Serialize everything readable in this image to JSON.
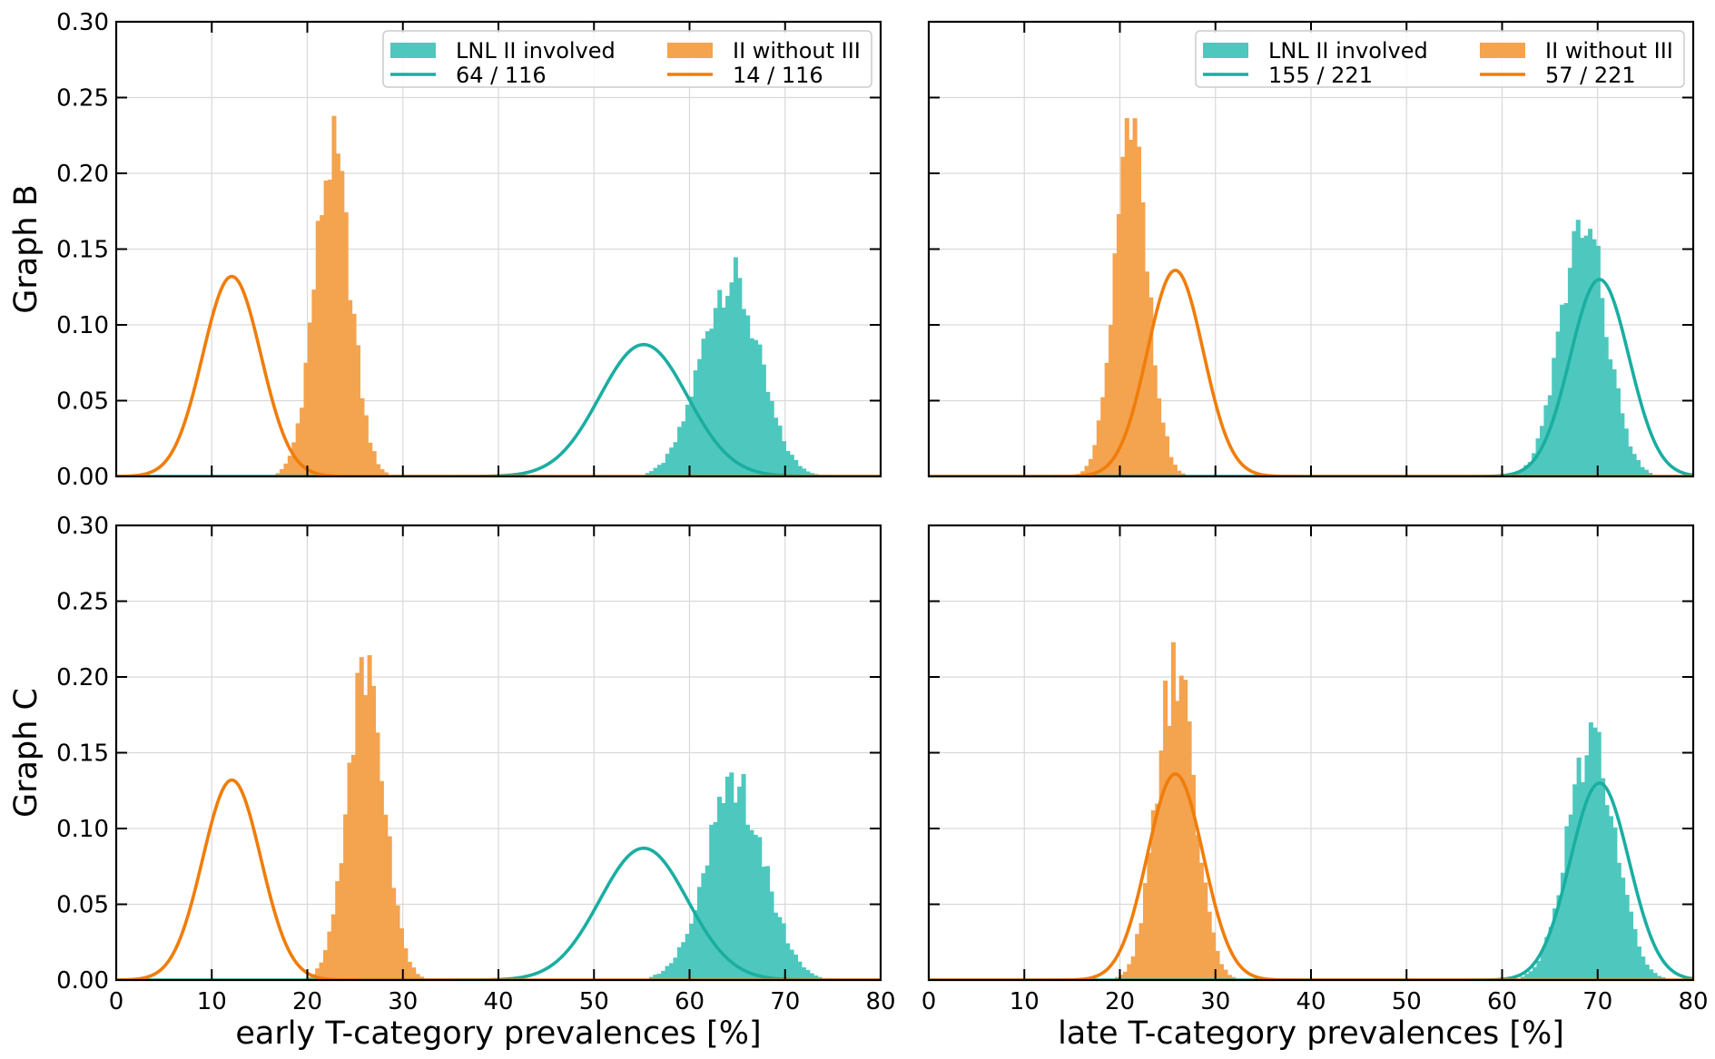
{
  "colors": {
    "teal": "#1aaea1",
    "teal_hist": "#4ec8be",
    "orange": "#f07d0a",
    "orange_hist": "#f4a34f"
  },
  "chart_data": [
    {
      "type": "histogram+line",
      "panel": "top-left",
      "ylabel": "Graph B",
      "xlabel": "",
      "xlim": [
        0,
        80
      ],
      "ylim": [
        0,
        0.3
      ],
      "xticks": [
        "0",
        "10",
        "20",
        "30",
        "40",
        "50",
        "60",
        "70",
        "80"
      ],
      "yticks": [
        "0.00",
        "0.05",
        "0.10",
        "0.15",
        "0.20",
        "0.25",
        "0.30"
      ],
      "grid": true,
      "legend": {
        "placement": "top-right",
        "entries": [
          {
            "label": "LNL II involved",
            "kind": "hist",
            "color": "teal_hist"
          },
          {
            "label": "II without III",
            "kind": "hist",
            "color": "orange_hist"
          },
          {
            "label": "64 / 116",
            "kind": "line",
            "color": "teal"
          },
          {
            "label": "14 / 116",
            "kind": "line",
            "color": "orange"
          }
        ]
      },
      "histograms": [
        {
          "name": "LNL II involved",
          "color": "teal_hist",
          "mean": 64.2,
          "sd": 3.05,
          "peak": 0.131
        },
        {
          "name": "II without III",
          "color": "orange_hist",
          "mean": 22.6,
          "sd": 1.9,
          "peak": 0.212
        }
      ],
      "curves": [
        {
          "name": "64 / 116",
          "color": "teal",
          "mean": 55.2,
          "sd": 4.6,
          "peak": 0.087
        },
        {
          "name": "14 / 116",
          "color": "orange",
          "mean": 12.1,
          "sd": 3.05,
          "peak": 0.132
        }
      ]
    },
    {
      "type": "histogram+line",
      "panel": "top-right",
      "ylabel": "",
      "xlabel": "",
      "xlim": [
        0,
        80
      ],
      "ylim": [
        0,
        0.3
      ],
      "grid": true,
      "legend": {
        "placement": "top-right",
        "entries": [
          {
            "label": "LNL II involved",
            "kind": "hist",
            "color": "teal_hist"
          },
          {
            "label": "II without III",
            "kind": "hist",
            "color": "orange_hist"
          },
          {
            "label": "155 / 221",
            "kind": "line",
            "color": "teal"
          },
          {
            "label": "57 / 221",
            "kind": "line",
            "color": "orange"
          }
        ]
      },
      "histograms": [
        {
          "name": "LNL II involved",
          "color": "teal_hist",
          "mean": 68.5,
          "sd": 2.4,
          "peak": 0.166
        },
        {
          "name": "II without III",
          "color": "orange_hist",
          "mean": 21.2,
          "sd": 1.75,
          "peak": 0.224
        }
      ],
      "curves": [
        {
          "name": "155 / 221",
          "color": "teal",
          "mean": 70.2,
          "sd": 3.08,
          "peak": 0.13
        },
        {
          "name": "57 / 221",
          "color": "orange",
          "mean": 25.8,
          "sd": 2.93,
          "peak": 0.136
        }
      ]
    },
    {
      "type": "histogram+line",
      "panel": "bottom-left",
      "ylabel": "Graph C",
      "xlabel": "early T-category prevalences [%]",
      "xlim": [
        0,
        80
      ],
      "ylim": [
        0,
        0.3
      ],
      "grid": true,
      "histograms": [
        {
          "name": "LNL II involved",
          "color": "teal_hist",
          "mean": 64.8,
          "sd": 3.1,
          "peak": 0.127
        },
        {
          "name": "II without III",
          "color": "orange_hist",
          "mean": 26.1,
          "sd": 1.95,
          "peak": 0.204
        }
      ],
      "curves": [
        {
          "name": "64 / 116",
          "color": "teal",
          "mean": 55.2,
          "sd": 4.6,
          "peak": 0.087
        },
        {
          "name": "14 / 116",
          "color": "orange",
          "mean": 12.1,
          "sd": 3.05,
          "peak": 0.132
        }
      ]
    },
    {
      "type": "histogram+line",
      "panel": "bottom-right",
      "ylabel": "",
      "xlabel": "late T-category prevalences [%]",
      "xlim": [
        0,
        80
      ],
      "ylim": [
        0,
        0.3
      ],
      "grid": true,
      "histograms": [
        {
          "name": "LNL II involved",
          "color": "teal_hist",
          "mean": 69.4,
          "sd": 2.5,
          "peak": 0.159
        },
        {
          "name": "II without III",
          "color": "orange_hist",
          "mean": 25.8,
          "sd": 2.0,
          "peak": 0.203
        }
      ],
      "curves": [
        {
          "name": "155 / 221",
          "color": "teal",
          "mean": 70.2,
          "sd": 3.08,
          "peak": 0.13
        },
        {
          "name": "57 / 221",
          "color": "orange",
          "mean": 25.8,
          "sd": 2.93,
          "peak": 0.136
        }
      ]
    }
  ]
}
